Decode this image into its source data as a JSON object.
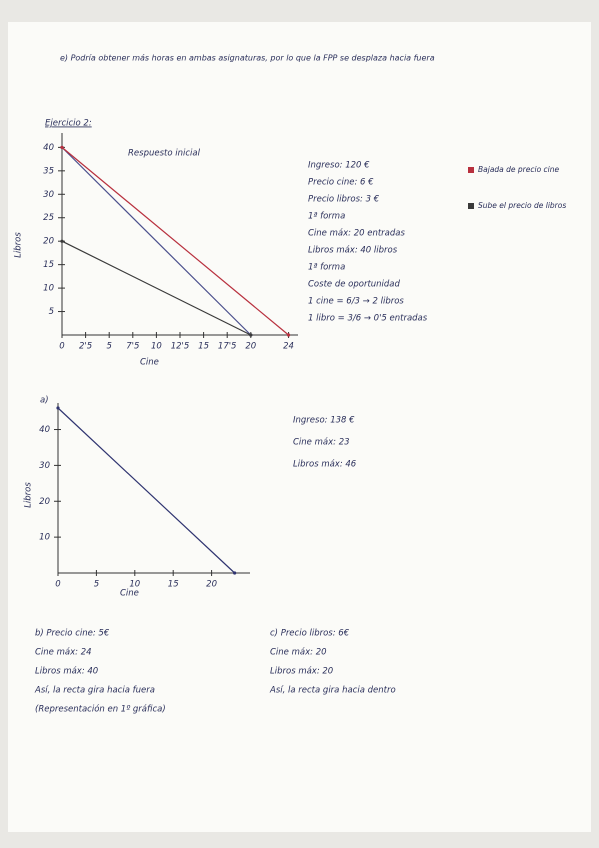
{
  "header_note": "e) Podría obtener más horas en ambas asignaturas, por lo que la FPP se desplaza hacia fuera",
  "exercise_title": "Ejercicio 2:",
  "chart1": {
    "title": "Respuesto inicial",
    "y_label": "Libros",
    "x_label": "Cine",
    "xlim": [
      0,
      25
    ],
    "ylim": [
      0,
      42
    ],
    "xticks": [
      0,
      {
        "value": 2.5,
        "label": "2'5"
      },
      5,
      {
        "value": 7.5,
        "label": "7'5"
      },
      10,
      {
        "value": 12.5,
        "label": "12'5"
      },
      15,
      {
        "value": 17.5,
        "label": "17'5"
      },
      20,
      24
    ],
    "yticks": [
      5,
      10,
      15,
      20,
      25,
      30,
      35,
      40
    ],
    "lines": [
      {
        "color": "#4a4f8c",
        "x": [
          0,
          20
        ],
        "y": [
          40,
          0
        ]
      },
      {
        "color": "#b8303e",
        "x": [
          0,
          24
        ],
        "y": [
          40,
          0
        ]
      },
      {
        "color": "#3a3a3a",
        "x": [
          0,
          20
        ],
        "y": [
          20,
          0
        ]
      }
    ]
  },
  "notes1": [
    "Ingreso: 120 €",
    "Precio cine: 6 €",
    "Precio libros: 3 €",
    "1ª forma",
    "Cine máx: 20 entradas",
    "Libros máx: 40 libros",
    "1ª forma",
    "Coste de oportunidad",
    "1 cine = 6/3 → 2 libros",
    "1 libro = 3/6 → 0'5 entradas"
  ],
  "legend": [
    {
      "label": "Bajada de precio cine",
      "color": "#b8303e"
    },
    {
      "label": "Sube el precio de libros",
      "color": "#3a3a3a"
    }
  ],
  "chart2": {
    "title": "a)",
    "y_label": "Libros",
    "x_label": "Cine",
    "xlim": [
      0,
      25
    ],
    "ylim": [
      0,
      46
    ],
    "xticks": [
      0,
      5,
      10,
      15,
      20
    ],
    "yticks": [
      10,
      20,
      30,
      40
    ],
    "lines": [
      {
        "color": "#2f3470",
        "x": [
          0,
          23
        ],
        "y": [
          46,
          0
        ]
      }
    ]
  },
  "notes2": [
    "Ingreso: 138 €",
    "Cine máx: 23",
    "Libros máx: 46"
  ],
  "section_b": [
    "b) Precio cine: 5€",
    "Cine máx: 24",
    "Libros máx: 40",
    "Así, la recta gira hacia fuera",
    "(Representación en 1º gráfica)"
  ],
  "section_c": [
    "c) Precio libros: 6€",
    "Cine máx: 20",
    "Libros máx: 20",
    "Así, la recta gira hacia dentro"
  ]
}
